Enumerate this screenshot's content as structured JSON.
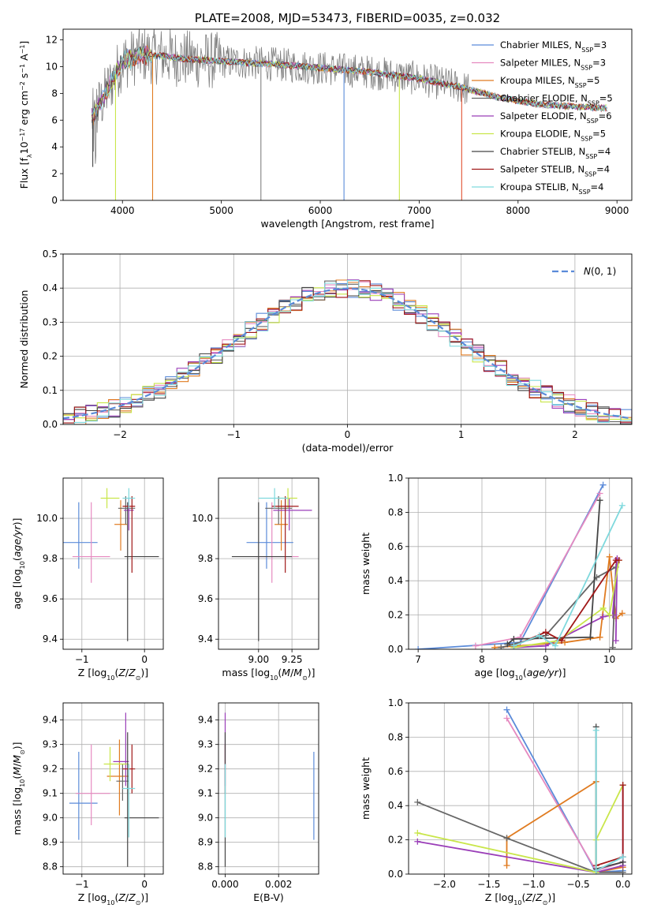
{
  "title": "PLATE=2008, MJD=53473, FIBERID=0035, z=0.032",
  "colors": {
    "Chabrier MILES": "#5b8bd9",
    "Salpeter MILES": "#e68ac0",
    "Kroupa MILES": "#e07b20",
    "Chabrier ELODIE": "#666666",
    "Salpeter ELODIE": "#9a3eb8",
    "Kroupa ELODIE": "#c9e64a",
    "Chabrier STELIB": "#444444",
    "Salpeter STELIB": "#a01818",
    "Kroupa STELIB": "#7fd9dd",
    "grid": "#b0b0b0",
    "gaussian": "#5b8bd9"
  },
  "chart_data": [
    {
      "id": "spectrum",
      "type": "line",
      "title": "PLATE=2008, MJD=53473, FIBERID=0035, z=0.032",
      "xlabel": "wavelength [Angstrom, rest frame]",
      "ylabel": "Flux [f$_\\lambda$10$^{-17}$ erg cm$^{-2}$ s$^{-1}$ A$^{-1}$]",
      "xlim": [
        3400,
        9150
      ],
      "ylim": [
        0,
        12.8
      ],
      "grid": false,
      "legend": "top-right",
      "xticks": [
        4000,
        5000,
        6000,
        7000,
        8000,
        9000
      ],
      "yticks": [
        0,
        2,
        4,
        6,
        8,
        10,
        12
      ],
      "data_profile": {
        "x": [
          3700,
          3800,
          3900,
          4000,
          4200,
          4400,
          4600,
          5000,
          5500,
          6000,
          6500,
          7000,
          7400,
          7800,
          8200,
          8600,
          8900
        ],
        "y": [
          6.2,
          7.5,
          9.0,
          10.4,
          10.9,
          10.8,
          10.6,
          10.4,
          10.2,
          9.9,
          9.6,
          9.1,
          8.5,
          7.7,
          7.2,
          7.0,
          6.9
        ]
      },
      "spikes": [
        {
          "x": 3700,
          "min": 2.5
        },
        {
          "x": 3930,
          "min": 0.0
        },
        {
          "x": 4305,
          "min": 0.0
        },
        {
          "x": 5400,
          "min": 0.0
        },
        {
          "x": 6240,
          "min": 0.0
        },
        {
          "x": 6800,
          "min": 0.0
        },
        {
          "x": 7430,
          "min": 0.0
        }
      ],
      "legend_entries": [
        {
          "name": "Chabrier MILES",
          "suffix": "=3"
        },
        {
          "name": "Salpeter MILES",
          "suffix": "=3"
        },
        {
          "name": "Kroupa MILES",
          "suffix": "=5"
        },
        {
          "name": "Chabrier ELODIE",
          "suffix": "=5"
        },
        {
          "name": "Salpeter ELODIE",
          "suffix": "=6"
        },
        {
          "name": "Kroupa ELODIE",
          "suffix": "=5"
        },
        {
          "name": "Chabrier STELIB",
          "suffix": "=4"
        },
        {
          "name": "Salpeter STELIB",
          "suffix": "=4"
        },
        {
          "name": "Kroupa STELIB",
          "suffix": "=4"
        }
      ],
      "legend_n_label": "N",
      "legend_n_sub": "SSP"
    },
    {
      "id": "residuals",
      "type": "histogram",
      "xlabel": "(data-model)/error",
      "ylabel": "Normed distribution",
      "xlim": [
        -2.5,
        2.5
      ],
      "ylim": [
        0,
        0.5
      ],
      "grid": true,
      "legend": "top-right",
      "legend_entry": "N(0, 1)",
      "xticks": [
        -2,
        -1,
        0,
        1,
        2
      ],
      "yticks": [
        0.0,
        0.1,
        0.2,
        0.3,
        0.4,
        0.5
      ],
      "bin_width": 0.1,
      "series_count": 9
    },
    {
      "id": "z-age",
      "type": "scatter",
      "xlabel": "Z [log10(Z/Z⊙)]",
      "ylabel": "age [log10(age/yr)]",
      "xlim": [
        -1.3,
        0.3
      ],
      "ylim": [
        9.35,
        10.2
      ],
      "grid": true,
      "xticks": [
        -1,
        0
      ],
      "yticks": [
        9.4,
        9.6,
        9.8,
        10.0
      ],
      "points": [
        {
          "series": "Chabrier MILES",
          "x": -1.05,
          "y": 9.88,
          "xerr": [
            0.3,
            0.3
          ],
          "yerr": [
            0.13,
            0.2
          ]
        },
        {
          "series": "Salpeter MILES",
          "x": -0.85,
          "y": 9.81,
          "xerr": [
            0.3,
            0.3
          ],
          "yerr": [
            0.13,
            0.27
          ]
        },
        {
          "series": "Kroupa MILES",
          "x": -0.38,
          "y": 9.97,
          "xerr": [
            0.1,
            0.1
          ],
          "yerr": [
            0.13,
            0.12
          ]
        },
        {
          "series": "Chabrier ELODIE",
          "x": -0.3,
          "y": 10.05,
          "xerr": [
            0.12,
            0.15
          ],
          "yerr": [
            0.08,
            0.06
          ]
        },
        {
          "series": "Salpeter ELODIE",
          "x": -0.25,
          "y": 10.04,
          "xerr": [
            0.08,
            0.08
          ],
          "yerr": [
            0.1,
            0.06
          ]
        },
        {
          "series": "Kroupa ELODIE",
          "x": -0.6,
          "y": 10.1,
          "xerr": [
            0.1,
            0.2
          ],
          "yerr": [
            0.05,
            0.05
          ]
        },
        {
          "series": "Chabrier STELIB",
          "x": -0.27,
          "y": 9.81,
          "xerr": [
            0.05,
            0.5
          ],
          "yerr": [
            0.42,
            0.27
          ]
        },
        {
          "series": "Salpeter STELIB",
          "x": -0.2,
          "y": 10.06,
          "xerr": [
            0.15,
            0.05
          ],
          "yerr": [
            0.33,
            0.05
          ]
        },
        {
          "series": "Kroupa STELIB",
          "x": -0.25,
          "y": 10.1,
          "xerr": [
            0.1,
            0.1
          ],
          "yerr": [
            0.05,
            0.05
          ]
        }
      ]
    },
    {
      "id": "mass-age",
      "type": "scatter",
      "xlabel": "mass [log10(M/M⊙)]",
      "ylabel": "",
      "xlim": [
        8.7,
        9.45
      ],
      "ylim": [
        9.35,
        10.2
      ],
      "grid": true,
      "xticks": [
        9.0,
        9.25
      ],
      "yticks": [
        9.4,
        9.6,
        9.8,
        10.0
      ],
      "points": [
        {
          "series": "Chabrier MILES",
          "x": 9.06,
          "y": 9.88,
          "xerr": [
            0.15,
            0.2
          ],
          "yerr": [
            0.13,
            0.2
          ]
        },
        {
          "series": "Salpeter MILES",
          "x": 9.1,
          "y": 9.81,
          "xerr": [
            0.12,
            0.2
          ],
          "yerr": [
            0.13,
            0.27
          ]
        },
        {
          "series": "Kroupa MILES",
          "x": 9.17,
          "y": 9.97,
          "xerr": [
            0.05,
            0.05
          ],
          "yerr": [
            0.13,
            0.12
          ]
        },
        {
          "series": "Chabrier ELODIE",
          "x": 9.15,
          "y": 10.05,
          "xerr": [
            0.1,
            0.1
          ],
          "yerr": [
            0.08,
            0.06
          ]
        },
        {
          "series": "Salpeter ELODIE",
          "x": 9.23,
          "y": 10.04,
          "xerr": [
            0.12,
            0.17
          ],
          "yerr": [
            0.1,
            0.06
          ]
        },
        {
          "series": "Kroupa ELODIE",
          "x": 9.22,
          "y": 10.1,
          "xerr": [
            0.07,
            0.07
          ],
          "yerr": [
            0.05,
            0.05
          ]
        },
        {
          "series": "Chabrier STELIB",
          "x": 9.0,
          "y": 9.81,
          "xerr": [
            0.2,
            0.25
          ],
          "yerr": [
            0.42,
            0.27
          ]
        },
        {
          "series": "Salpeter STELIB",
          "x": 9.2,
          "y": 10.06,
          "xerr": [
            0.1,
            0.1
          ],
          "yerr": [
            0.33,
            0.05
          ]
        },
        {
          "series": "Kroupa STELIB",
          "x": 9.12,
          "y": 10.1,
          "xerr": [
            0.12,
            0.1
          ],
          "yerr": [
            0.05,
            0.05
          ]
        }
      ]
    },
    {
      "id": "age-weight",
      "type": "line",
      "xlabel": "age [log10(age/yr)]",
      "ylabel": "mass weight",
      "xlim": [
        6.85,
        10.35
      ],
      "ylim": [
        0,
        1
      ],
      "grid": true,
      "xticks": [
        7,
        8,
        9,
        10
      ],
      "yticks": [
        0.0,
        0.2,
        0.4,
        0.6,
        0.8,
        1.0
      ],
      "series": [
        {
          "name": "Chabrier MILES",
          "x": [
            7.0,
            8.6,
            9.9
          ],
          "y": [
            0.0,
            0.04,
            0.96
          ]
        },
        {
          "name": "Salpeter MILES",
          "x": [
            7.9,
            8.6,
            9.85
          ],
          "y": [
            0.02,
            0.07,
            0.91
          ]
        },
        {
          "name": "Kroupa MILES",
          "x": [
            8.2,
            9.3,
            9.85,
            10.0,
            10.1,
            10.2
          ],
          "y": [
            0.01,
            0.04,
            0.07,
            0.54,
            0.18,
            0.21
          ]
        },
        {
          "name": "Chabrier ELODIE",
          "x": [
            8.3,
            9.0,
            9.8,
            10.1,
            10.05
          ],
          "y": [
            0.01,
            0.08,
            0.42,
            0.48,
            0.01
          ]
        },
        {
          "name": "Salpeter ELODIE",
          "x": [
            8.5,
            9.0,
            9.9,
            10.05,
            10.12,
            10.1
          ],
          "y": [
            0.01,
            0.02,
            0.19,
            0.2,
            0.53,
            0.05
          ]
        },
        {
          "name": "Kroupa ELODIE",
          "x": [
            8.5,
            9.2,
            9.9,
            10.0,
            10.15
          ],
          "y": [
            0.01,
            0.05,
            0.24,
            0.2,
            0.52
          ]
        },
        {
          "name": "Chabrier STELIB",
          "x": [
            8.4,
            8.5,
            9.7,
            9.85
          ],
          "y": [
            0.03,
            0.06,
            0.07,
            0.87
          ]
        },
        {
          "name": "Salpeter STELIB",
          "x": [
            8.5,
            9.0,
            9.25,
            10.1,
            10.15
          ],
          "y": [
            0.02,
            0.1,
            0.05,
            0.52,
            0.52
          ]
        },
        {
          "name": "Kroupa STELIB",
          "x": [
            8.5,
            8.9,
            9.15,
            10.2
          ],
          "y": [
            0.02,
            0.08,
            0.02,
            0.84
          ]
        }
      ]
    },
    {
      "id": "z-mass",
      "type": "scatter",
      "xlabel": "Z [log10(Z/Z⊙)]",
      "ylabel": "mass [log10(M/M⊙)]",
      "xlim": [
        -1.3,
        0.3
      ],
      "ylim": [
        8.77,
        9.47
      ],
      "grid": true,
      "xticks": [
        -1,
        0
      ],
      "yticks": [
        8.8,
        8.9,
        9.0,
        9.1,
        9.2,
        9.3,
        9.4
      ],
      "points": [
        {
          "series": "Chabrier MILES",
          "x": -1.05,
          "y": 9.06,
          "xerr": [
            0.15,
            0.3
          ],
          "yerr": [
            0.15,
            0.21
          ]
        },
        {
          "series": "Salpeter MILES",
          "x": -0.85,
          "y": 9.1,
          "xerr": [
            0.25,
            0.3
          ],
          "yerr": [
            0.13,
            0.2
          ]
        },
        {
          "series": "Kroupa MILES",
          "x": -0.4,
          "y": 9.17,
          "xerr": [
            0.2,
            0.15
          ],
          "yerr": [
            0.16,
            0.15
          ]
        },
        {
          "series": "Chabrier ELODIE",
          "x": -0.35,
          "y": 9.15,
          "xerr": [
            0.1,
            0.1
          ],
          "yerr": [
            0.08,
            0.07
          ]
        },
        {
          "series": "Salpeter ELODIE",
          "x": -0.3,
          "y": 9.23,
          "xerr": [
            0.2,
            0.05
          ],
          "yerr": [
            0.1,
            0.2
          ]
        },
        {
          "series": "Kroupa ELODIE",
          "x": -0.55,
          "y": 9.22,
          "xerr": [
            0.1,
            0.3
          ],
          "yerr": [
            0.07,
            0.07
          ]
        },
        {
          "series": "Chabrier STELIB",
          "x": -0.27,
          "y": 9.0,
          "xerr": [
            0.05,
            0.5
          ],
          "yerr": [
            0.2,
            0.35
          ]
        },
        {
          "series": "Salpeter STELIB",
          "x": -0.2,
          "y": 9.2,
          "xerr": [
            0.15,
            0.05
          ],
          "yerr": [
            0.1,
            0.1
          ]
        },
        {
          "series": "Kroupa STELIB",
          "x": -0.25,
          "y": 9.12,
          "xerr": [
            0.1,
            0.1
          ],
          "yerr": [
            0.2,
            0.1
          ]
        }
      ]
    },
    {
      "id": "ebv-mass",
      "type": "scatter",
      "xlabel": "E(B-V)",
      "ylabel": "",
      "xlim": [
        -0.00025,
        0.0035
      ],
      "ylim": [
        8.77,
        9.47
      ],
      "grid": true,
      "xticks": [
        0.0,
        0.002
      ],
      "xtick_labels": [
        "0.000",
        "0.002"
      ],
      "yticks": [
        8.8,
        8.9,
        9.0,
        9.1,
        9.2,
        9.3,
        9.4
      ],
      "points": [
        {
          "series": "Chabrier MILES",
          "x": 0.00332,
          "y": 9.06,
          "xerr": [
            0,
            0
          ],
          "yerr": [
            0.15,
            0.21
          ]
        },
        {
          "series": "Salpeter ELODIE",
          "x": 0.0,
          "y": 9.23,
          "xerr": [
            0,
            0
          ],
          "yerr": [
            0.1,
            0.2
          ]
        },
        {
          "series": "Salpeter STELIB",
          "x": 0.0,
          "y": 9.2,
          "xerr": [
            0,
            0
          ],
          "yerr": [
            0.1,
            0.1
          ]
        },
        {
          "series": "Chabrier STELIB",
          "x": 0.0,
          "y": 9.0,
          "xerr": [
            0,
            0
          ],
          "yerr": [
            0.2,
            0.35
          ]
        },
        {
          "series": "Kroupa STELIB",
          "x": 0.0,
          "y": 9.12,
          "xerr": [
            0,
            0
          ],
          "yerr": [
            0.2,
            0.1
          ]
        }
      ]
    },
    {
      "id": "z-weight",
      "type": "line",
      "xlabel": "Z [log10(Z/Z⊙)]",
      "ylabel": "mass weight",
      "xlim": [
        -2.4,
        0.1
      ],
      "ylim": [
        0,
        1
      ],
      "grid": true,
      "xticks": [
        -2.0,
        -1.5,
        -1.0,
        -0.5,
        0.0
      ],
      "yticks": [
        0.0,
        0.2,
        0.4,
        0.6,
        0.8,
        1.0
      ],
      "series": [
        {
          "name": "Chabrier MILES",
          "x": [
            -1.3,
            -0.3,
            0.0
          ],
          "y": [
            0.96,
            0.01,
            0.02
          ]
        },
        {
          "name": "Salpeter MILES",
          "x": [
            -1.3,
            -0.3,
            0.0
          ],
          "y": [
            0.91,
            0.02,
            0.07
          ]
        },
        {
          "name": "Kroupa MILES",
          "x": [
            -1.3,
            -1.3,
            -0.3,
            -0.3,
            0.0
          ],
          "y": [
            0.05,
            0.21,
            0.54,
            0.01,
            0.04
          ]
        },
        {
          "name": "Chabrier ELODIE",
          "x": [
            -2.3,
            -1.3,
            -0.3,
            0.0
          ],
          "y": [
            0.42,
            0.21,
            0.01,
            0.01
          ]
        },
        {
          "name": "Salpeter ELODIE",
          "x": [
            -2.3,
            -0.3,
            0.0,
            0.0
          ],
          "y": [
            0.19,
            0.01,
            0.05,
            0.52
          ]
        },
        {
          "name": "Kroupa ELODIE",
          "x": [
            -2.3,
            -0.3,
            -0.3,
            0.0
          ],
          "y": [
            0.24,
            0.01,
            0.2,
            0.52
          ]
        },
        {
          "name": "Chabrier STELIB",
          "x": [
            -0.3,
            -0.3,
            0.0
          ],
          "y": [
            0.86,
            0.03,
            0.07
          ]
        },
        {
          "name": "Salpeter STELIB",
          "x": [
            -0.3,
            0.0,
            0.0
          ],
          "y": [
            0.05,
            0.1,
            0.52
          ]
        },
        {
          "name": "Kroupa STELIB",
          "x": [
            -0.3,
            -0.3,
            0.0
          ],
          "y": [
            0.84,
            0.02,
            0.1
          ]
        }
      ]
    }
  ]
}
